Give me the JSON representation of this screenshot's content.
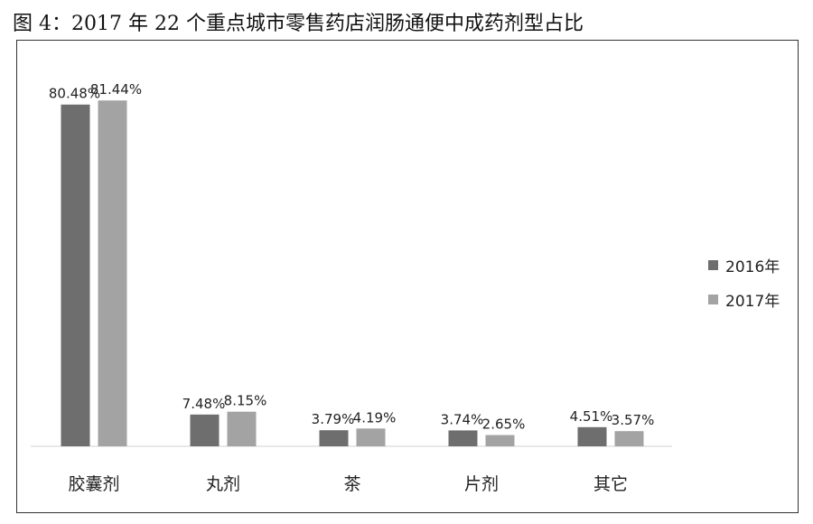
{
  "title": "图 4：2017 年 22 个重点城市零售药店润肠通便中成药剂型占比",
  "chart_data": {
    "type": "bar",
    "categories": [
      "胶囊剂",
      "丸剂",
      "茶",
      "片剂",
      "其它"
    ],
    "series": [
      {
        "name": "2016年",
        "values": [
          80.48,
          7.48,
          3.79,
          3.74,
          4.51
        ],
        "labels": [
          "80.48%",
          "7.48%",
          "3.79%",
          "3.74%",
          "4.51%"
        ],
        "color": "#6e6e6e"
      },
      {
        "name": "2017年",
        "values": [
          81.44,
          8.15,
          4.19,
          2.65,
          3.57
        ],
        "labels": [
          "81.44%",
          "8.15%",
          "4.19%",
          "2.65%",
          "3.57%"
        ],
        "color": "#a3a3a3"
      }
    ],
    "ylim": [
      0,
      100
    ],
    "legend": "right",
    "grid": false
  }
}
